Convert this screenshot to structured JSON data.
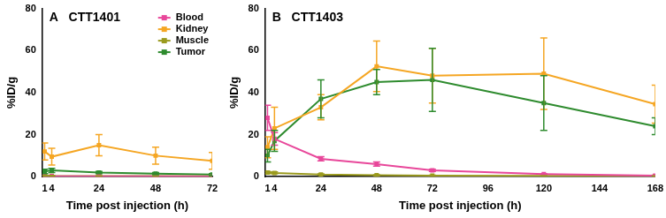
{
  "chart_data": [
    {
      "type": "line",
      "title": "A   CTT1401",
      "x_label": "Time post injection (h)",
      "y_label": "%ID/g",
      "x": [
        1,
        4,
        24,
        48,
        72
      ],
      "xlim": [
        0,
        72
      ],
      "xticks": [
        1,
        4,
        24,
        48,
        72
      ],
      "ylim": [
        0,
        80
      ],
      "yticks": [
        0,
        20,
        40,
        60,
        80
      ],
      "grid": false,
      "legend": "top-right",
      "series": [
        {
          "name": "Blood",
          "color": "#e8479a",
          "marker": "square",
          "values": [
            0.4,
            0.3,
            0.2,
            0.2,
            0.1
          ],
          "errors": [
            0.2,
            0.1,
            0.1,
            0.1,
            0.1
          ]
        },
        {
          "name": "Kidney",
          "color": "#f5a623",
          "marker": "square",
          "values": [
            12,
            9.5,
            15,
            10,
            7.5
          ],
          "errors": [
            4,
            4,
            5,
            4,
            4
          ]
        },
        {
          "name": "Muscle",
          "color": "#9a9a1e",
          "marker": "square",
          "values": [
            0.5,
            0.4,
            0.3,
            0.3,
            0.2
          ],
          "errors": [
            0.2,
            0.2,
            0.1,
            0.1,
            0.1
          ]
        },
        {
          "name": "Tumor",
          "color": "#2e8b2e",
          "marker": "square",
          "values": [
            2.5,
            3,
            2,
            1.5,
            1
          ],
          "errors": [
            1,
            1,
            0.5,
            0.5,
            0.5
          ]
        }
      ]
    },
    {
      "type": "line",
      "title": "B   CTT1403",
      "x_label": "Time post injection (h)",
      "y_label": "%ID/g",
      "x": [
        1,
        4,
        24,
        48,
        72,
        120,
        168
      ],
      "xlim": [
        0,
        168
      ],
      "xticks": [
        1,
        4,
        24,
        48,
        72,
        96,
        120,
        144,
        168
      ],
      "ylim": [
        0,
        80
      ],
      "yticks": [
        0,
        20,
        40,
        60,
        80
      ],
      "grid": false,
      "series": [
        {
          "name": "Blood",
          "color": "#e8479a",
          "marker": "square",
          "values": [
            28,
            18,
            8.5,
            6,
            3,
            1.2,
            0.5
          ],
          "errors": [
            6,
            3,
            1,
            1,
            0.5,
            0.3,
            0.2
          ]
        },
        {
          "name": "Kidney",
          "color": "#f5a623",
          "marker": "square",
          "values": [
            14,
            23,
            33,
            52.5,
            48,
            49,
            34.5
          ],
          "errors": [
            5,
            10,
            6,
            12,
            13,
            17,
            9
          ]
        },
        {
          "name": "Muscle",
          "color": "#9a9a1e",
          "marker": "square",
          "values": [
            2,
            1.8,
            1,
            0.7,
            0.5,
            0.4,
            0.3
          ],
          "errors": [
            0.5,
            0.5,
            0.3,
            0.2,
            0.2,
            0.1,
            0.1
          ]
        },
        {
          "name": "Tumor",
          "color": "#2e8b2e",
          "marker": "square",
          "values": [
            10,
            17,
            37,
            45,
            46,
            35,
            24
          ],
          "errors": [
            3,
            5,
            9,
            6,
            15,
            13,
            4
          ]
        }
      ]
    }
  ]
}
